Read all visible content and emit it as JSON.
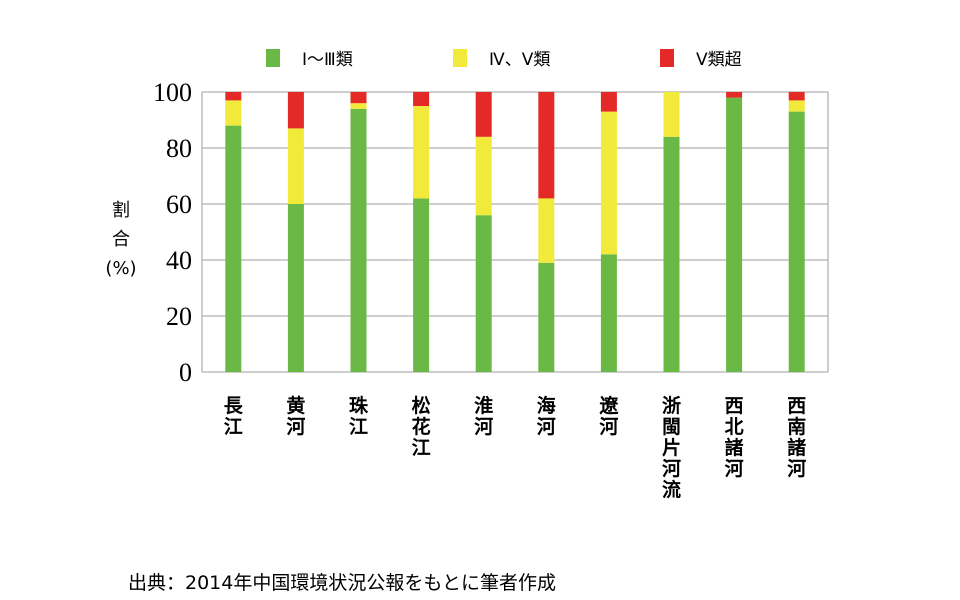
{
  "chart_data": {
    "type": "bar",
    "stacked": true,
    "categories": [
      "長江",
      "黄河",
      "珠江",
      "松花江",
      "淮河",
      "海河",
      "遼河",
      "浙閩片河流",
      "西北諸河",
      "西南諸河"
    ],
    "series": [
      {
        "name": "Ⅰ～Ⅲ類",
        "color": "#6ab946",
        "values": [
          88,
          60,
          94,
          62,
          56,
          39,
          42,
          84,
          98,
          93
        ]
      },
      {
        "name": "Ⅳ、Ⅴ類",
        "color": "#f1ea3a",
        "values": [
          9,
          27,
          2,
          33,
          28,
          23,
          51,
          16,
          0,
          4
        ]
      },
      {
        "name": "Ⅴ類超",
        "color": "#e42a26",
        "values": [
          3,
          13,
          4,
          5,
          16,
          38,
          7,
          0,
          2,
          3
        ]
      }
    ],
    "yticks": [
      0,
      20,
      40,
      60,
      80,
      100
    ],
    "ylim": [
      0,
      100
    ],
    "ylabel_lines": [
      "割",
      "合",
      "(%)"
    ],
    "grid": true,
    "legend": "top"
  },
  "footer": {
    "source": "出典：2014年中国環境状況公報をもとに筆者作成"
  }
}
